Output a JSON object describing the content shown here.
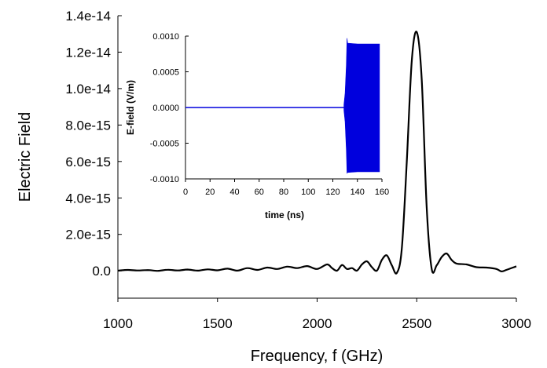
{
  "chart_data": [
    {
      "type": "line",
      "xlabel": "Frequency, f (GHz)",
      "ylabel": "Electric Field",
      "xlim": [
        1000,
        3000
      ],
      "ylim": [
        -1.5e-15,
        1.4e-14
      ],
      "x_ticks": [
        1000,
        1500,
        2000,
        2500,
        3000
      ],
      "x_tick_labels": [
        "1000",
        "1500",
        "2000",
        "2500",
        "3000"
      ],
      "y_ticks": [
        0,
        2e-15,
        4e-15,
        6e-15,
        8e-15,
        1e-14,
        1.2e-14,
        1.4e-14
      ],
      "y_tick_labels": [
        "0.0",
        "2.0e-15",
        "4.0e-15",
        "6.0e-15",
        "8.0e-15",
        "1.0e-14",
        "1.2e-14",
        "1.4e-14"
      ],
      "grid": false,
      "series": [
        {
          "color": "#000000",
          "x": [
            1000,
            1050,
            1100,
            1150,
            1200,
            1250,
            1300,
            1350,
            1400,
            1450,
            1500,
            1550,
            1600,
            1650,
            1700,
            1750,
            1800,
            1850,
            1900,
            1950,
            2000,
            2050,
            2075,
            2100,
            2125,
            2150,
            2175,
            2200,
            2225,
            2250,
            2275,
            2300,
            2325,
            2350,
            2375,
            2400,
            2425,
            2450,
            2475,
            2500,
            2525,
            2550,
            2575,
            2600,
            2625,
            2650,
            2675,
            2700,
            2750,
            2800,
            2850,
            2900,
            2925,
            2950,
            3000
          ],
          "y": [
            1e-17,
            5e-17,
            2e-17,
            4e-17,
            0,
            6e-17,
            2e-17,
            7e-17,
            1e-17,
            8e-17,
            3e-17,
            1.2e-16,
            1e-17,
            1.5e-16,
            5e-17,
            1.8e-16,
            1e-16,
            2.3e-16,
            1.5e-16,
            2.6e-16,
            1e-16,
            3.5e-16,
            1.5e-16,
            1e-17,
            3.2e-16,
            1e-16,
            1.5e-16,
            1e-17,
            3.5e-16,
            5.2e-16,
            2e-16,
            1e-17,
            6e-16,
            8.5e-16,
            3e-16,
            -1.2e-16,
            1.2e-15,
            6e-15,
            1.15e-14,
            1.31e-14,
            1.05e-14,
            3.5e-15,
            1e-16,
            3e-16,
            7.5e-16,
            9.5e-16,
            6e-16,
            4e-16,
            3.5e-16,
            2e-16,
            1.8e-16,
            1e-16,
            -3e-17,
            5e-17,
            2.5e-16
          ]
        }
      ]
    },
    {
      "type": "line",
      "xlabel": "time (ns)",
      "ylabel": "E-field (V/m)",
      "xlim": [
        0,
        160
      ],
      "ylim": [
        -0.001,
        0.001
      ],
      "x_ticks": [
        0,
        20,
        40,
        60,
        80,
        100,
        120,
        140,
        160
      ],
      "x_tick_labels": [
        "0",
        "20",
        "40",
        "60",
        "80",
        "100",
        "120",
        "140",
        "160"
      ],
      "y_ticks": [
        -0.001,
        -0.0005,
        0,
        0.0005,
        0.001
      ],
      "y_tick_labels": [
        "-0.0010",
        "-0.0005",
        "0.0000",
        "0.0005",
        "0.0010"
      ],
      "grid": false,
      "series": [
        {
          "color": "#0000dd",
          "baseline": {
            "x": [
              0,
              129
            ],
            "y": [
              0,
              0
            ]
          },
          "envelope": {
            "x": [
              129,
              130,
              131,
              131.5,
              132,
              140,
              150,
              158
            ],
            "upper": [
              4e-05,
              0.0002,
              0.0006,
              0.00097,
              0.0009,
              0.00089,
              0.00089,
              0.00089
            ],
            "lower": [
              -4e-05,
              -0.0002,
              -0.0006,
              -0.00092,
              -0.00091,
              -0.0009,
              -0.0009,
              -0.0009
            ]
          }
        }
      ]
    }
  ]
}
